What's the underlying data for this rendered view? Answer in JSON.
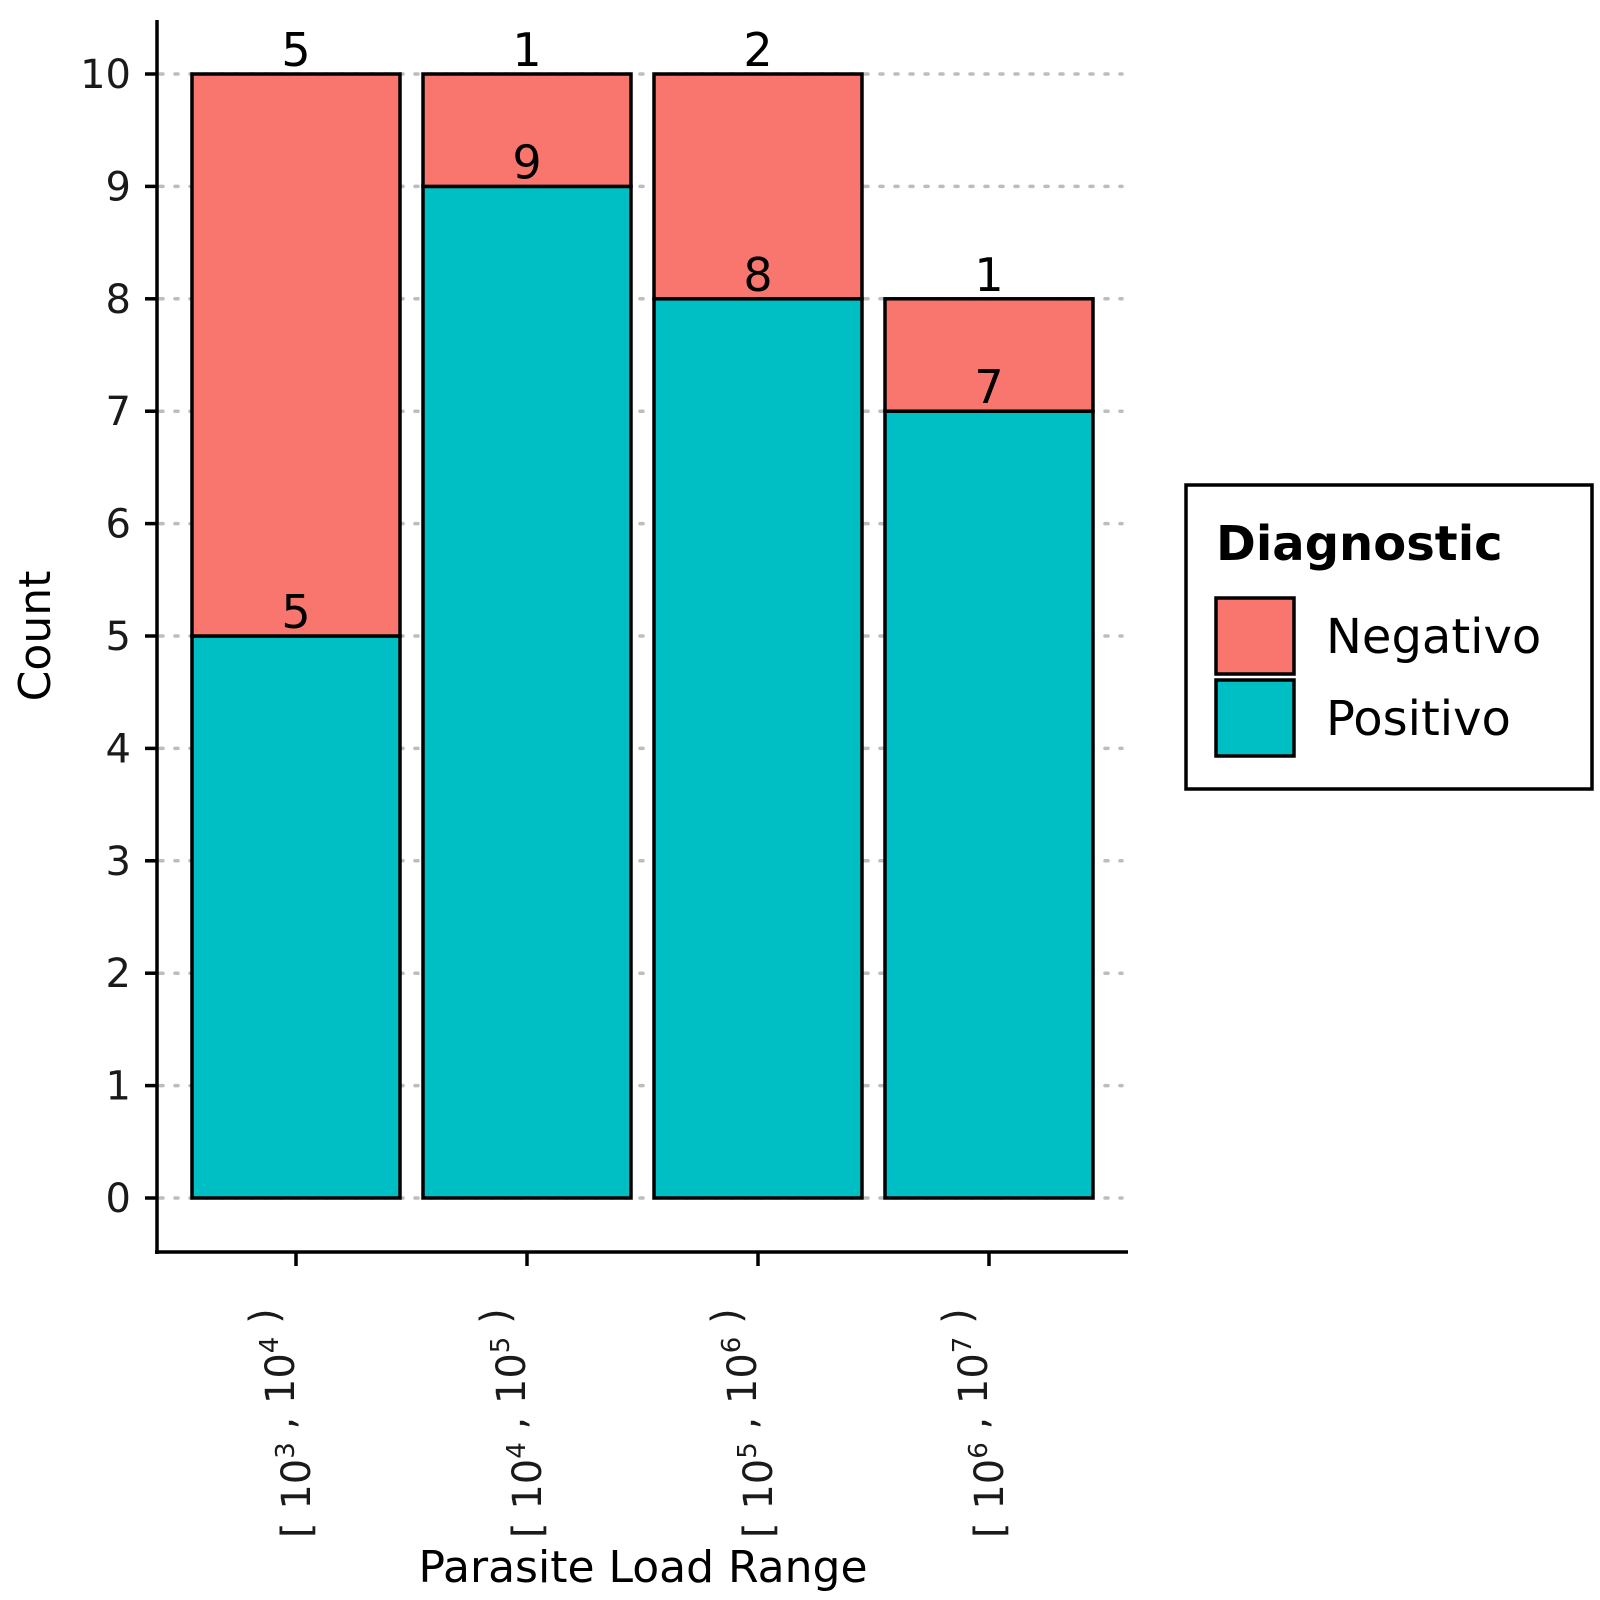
{
  "chart_data": {
    "type": "bar",
    "stacked": true,
    "title": "",
    "xlabel": "Parasite Load Range",
    "ylabel": "Count",
    "ylim": [
      0,
      10
    ],
    "y_ticks": [
      "0",
      "1",
      "2",
      "3",
      "4",
      "5",
      "6",
      "7",
      "8",
      "9",
      "10"
    ],
    "grid": "horizontal dotted",
    "categories": [
      {
        "label": "[ 10^3 , 10^4 )",
        "lo_exp": "3",
        "hi_exp": "4"
      },
      {
        "label": "[ 10^4 , 10^5 )",
        "lo_exp": "4",
        "hi_exp": "5"
      },
      {
        "label": "[ 10^5 , 10^6 )",
        "lo_exp": "5",
        "hi_exp": "6"
      },
      {
        "label": "[ 10^6 , 10^7 )",
        "lo_exp": "6",
        "hi_exp": "7"
      }
    ],
    "series": [
      {
        "name": "Positivo",
        "color": "#00BFC4",
        "values": [
          5,
          9,
          8,
          7
        ]
      },
      {
        "name": "Negativo",
        "color": "#F8766D",
        "values": [
          5,
          1,
          2,
          1
        ]
      }
    ],
    "legend": {
      "title": "Diagnostic",
      "placement": "right",
      "entries": [
        {
          "label": "Negativo",
          "color": "#F8766D"
        },
        {
          "label": "Positivo",
          "color": "#00BFC4"
        }
      ]
    }
  }
}
